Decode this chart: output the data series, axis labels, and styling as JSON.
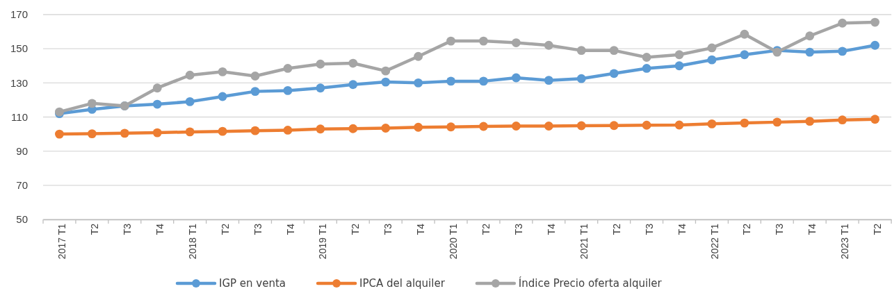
{
  "chart_data": {
    "type": "line",
    "categories": [
      "2017 T1",
      "T2",
      "T3",
      "T4",
      "2018 T1",
      "T2",
      "T3",
      "T4",
      "2019 T1",
      "T2",
      "T3",
      "T4",
      "2020 T1",
      "T2",
      "T3",
      "T4",
      "2021 T1",
      "T2",
      "T3",
      "T4",
      "2022 T1",
      "T2",
      "T3",
      "T4",
      "2023 T1",
      "T2"
    ],
    "series": [
      {
        "name": "IGP en venta",
        "color": "#5b9bd5",
        "values": [
          112,
          114.5,
          116.5,
          117.5,
          119,
          122,
          125,
          125.5,
          127,
          129,
          130.5,
          130,
          131,
          131,
          133,
          131.5,
          132.5,
          135.5,
          138.5,
          140,
          143.5,
          146.5,
          149,
          148,
          148.5,
          152
        ]
      },
      {
        "name": "IPCA del alquiler",
        "color": "#ed7d31",
        "values": [
          100,
          100.2,
          100.5,
          100.8,
          101.3,
          101.6,
          102,
          102.3,
          103,
          103.2,
          103.5,
          104,
          104.2,
          104.5,
          104.7,
          104.7,
          104.9,
          105,
          105.2,
          105.3,
          106,
          106.5,
          107,
          107.5,
          108.3,
          108.7
        ]
      },
      {
        "name": "Índice Precio oferta alquiler",
        "color": "#a5a5a5",
        "values": [
          113,
          118,
          116.5,
          127,
          134.5,
          136.5,
          134,
          138.5,
          141,
          141.5,
          137,
          145.5,
          154.5,
          154.5,
          153.5,
          152,
          149,
          149,
          145,
          146.5,
          150.5,
          158.5,
          148,
          157.5,
          165,
          165.5
        ]
      }
    ],
    "ylim": [
      50,
      170
    ],
    "yticks": [
      50,
      70,
      90,
      110,
      130,
      150,
      170
    ],
    "grid": "y",
    "legend": "bottom",
    "marker": "circle",
    "line_style": "solid"
  }
}
